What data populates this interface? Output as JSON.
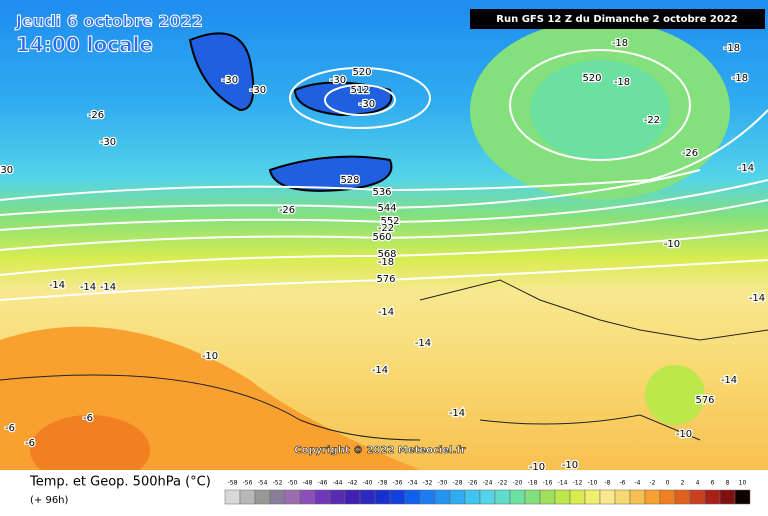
{
  "header": {
    "date": "Jeudi 6 octobre 2022",
    "time": "14:00 locale",
    "run": "Run GFS 12 Z du Dimanche 2 octobre 2022"
  },
  "copyright": "Copyright © 2022 Meteociel.fr",
  "footer": {
    "title": "Temp. et Geop. 500hPa (°C)",
    "lead": "(+ 96h)"
  },
  "legend": {
    "values": [
      -58,
      -56,
      -54,
      -52,
      -50,
      -48,
      -46,
      -44,
      -42,
      -40,
      -38,
      -36,
      -34,
      -32,
      -30,
      -28,
      -26,
      -24,
      -22,
      -20,
      -18,
      -16,
      -14,
      -12,
      -10,
      -8,
      -6,
      -4,
      -2,
      0,
      2,
      4,
      6,
      8,
      10
    ],
    "colors": [
      "#d8d8d8",
      "#b8b8b8",
      "#989898",
      "#8a7d9a",
      "#9a6fb0",
      "#8a4fb8",
      "#7038b8",
      "#5a2ab0",
      "#4020b0",
      "#2c28c0",
      "#1830d0",
      "#1040e0",
      "#1060f0",
      "#1c7cf4",
      "#2494f0",
      "#30acf0",
      "#40c4f0",
      "#54d4e8",
      "#60dcc8",
      "#6ce0a0",
      "#84e07c",
      "#a0e05c",
      "#bce84c",
      "#d8ec50",
      "#f0f070",
      "#f8e890",
      "#f8d870",
      "#f8c050",
      "#f8a030",
      "#f08020",
      "#e06020",
      "#c84020",
      "#a82018",
      "#801010",
      "#100000"
    ]
  },
  "map_labels": [
    "-30",
    "-30",
    "-30",
    "-30",
    "-30",
    "-30",
    "520",
    "520",
    "512",
    "528",
    "536",
    "544",
    "552",
    "560",
    "568",
    "576",
    "576",
    "-26",
    "-26",
    "-26",
    "-22",
    "-22",
    "-18",
    "-18",
    "-18",
    "-18",
    "-18",
    "-14",
    "-14",
    "-14",
    "-14",
    "-14",
    "-14",
    "-14",
    "-14",
    "-14",
    "-14",
    "-10",
    "-10",
    "-10",
    "-10",
    "-10",
    "-6",
    "-6",
    "-6"
  ]
}
